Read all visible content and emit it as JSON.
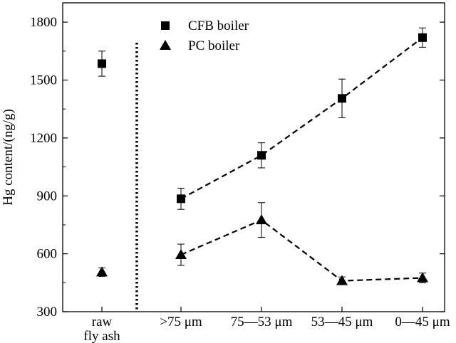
{
  "chart_data": {
    "type": "scatter",
    "title": "",
    "xlabel": "",
    "ylabel": "Hg content/(ng/g)",
    "ylim": [
      300,
      1900
    ],
    "yticks": [
      300,
      600,
      900,
      1200,
      1500,
      1800
    ],
    "categories": [
      {
        "line1": "raw",
        "line2": "fly ash"
      },
      {
        "line1": ">75 μm",
        "line2": ""
      },
      {
        "line1": "75—53 μm",
        "line2": ""
      },
      {
        "line1": "53—45 μm",
        "line2": ""
      },
      {
        "line1": "0—45 μm",
        "line2": ""
      }
    ],
    "separator": "dotted vertical line between raw fly ash and size fractions",
    "grid": false,
    "legend_position": "top",
    "series": [
      {
        "name": "CFB boiler",
        "marker": "square",
        "color": "#000000",
        "values": [
          1585,
          885,
          1110,
          1405,
          1720
        ],
        "error": [
          65,
          55,
          65,
          100,
          50
        ],
        "connected_from_index": 1,
        "line_style": "dashed"
      },
      {
        "name": "PC boiler",
        "marker": "triangle",
        "color": "#000000",
        "values": [
          505,
          595,
          775,
          460,
          475
        ],
        "error": [
          22,
          55,
          90,
          20,
          25
        ],
        "connected_from_index": 1,
        "line_style": "dashed"
      }
    ]
  }
}
